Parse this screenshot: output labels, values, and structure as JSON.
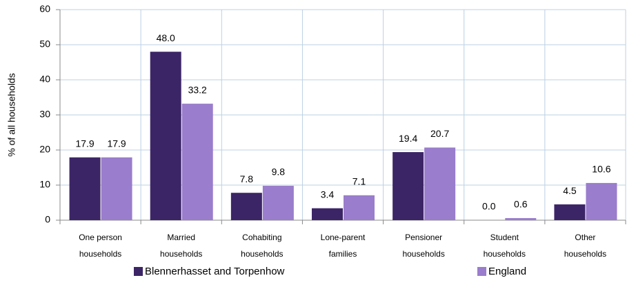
{
  "chart_data": {
    "type": "bar",
    "y_label": "% of all households",
    "categories": [
      [
        "One person",
        "households"
      ],
      [
        "Married",
        "households"
      ],
      [
        "Cohabiting",
        "households"
      ],
      [
        "Lone-parent",
        "families"
      ],
      [
        "Pensioner",
        "households"
      ],
      [
        "Student",
        "households"
      ],
      [
        "Other",
        "households"
      ]
    ],
    "series": [
      {
        "name": "Blennerhasset and Torpenhow",
        "color": "#3c2566",
        "values": [
          17.9,
          48,
          7.8,
          3.4,
          19.4,
          0,
          4.5
        ],
        "value_labels": [
          "17.9",
          "48.0",
          "7.8",
          "3.4",
          "19.4",
          "0.0",
          "4.5"
        ]
      },
      {
        "name": "England",
        "color": "#9a7dcc",
        "values": [
          17.9,
          33.2,
          9.8,
          7.1,
          20.7,
          0.6,
          10.6
        ],
        "value_labels": [
          "17.9",
          "33.2",
          "9.8",
          "7.1",
          "20.7",
          "0.6",
          "10.6"
        ]
      }
    ],
    "ylim": [
      0,
      60
    ],
    "yticks": [
      0,
      10,
      20,
      30,
      40,
      50,
      60
    ],
    "grid": true,
    "legend": "bottom"
  }
}
